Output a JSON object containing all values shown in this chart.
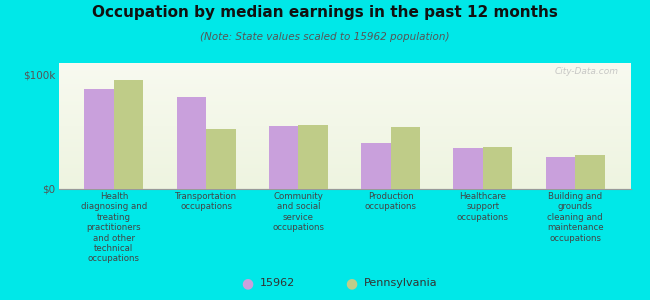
{
  "title": "Occupation by median earnings in the past 12 months",
  "subtitle": "(Note: State values scaled to 15962 population)",
  "background_color": "#00e8e8",
  "plot_bg_colors": [
    "#eef4e0",
    "#f8faf0"
  ],
  "categories": [
    "Health\ndiagnosing and\ntreating\npractitioners\nand other\ntechnical\noccupations",
    "Transportation\noccupations",
    "Community\nand social\nservice\noccupations",
    "Production\noccupations",
    "Healthcare\nsupport\noccupations",
    "Building and\ngrounds\ncleaning and\nmaintenance\noccupations"
  ],
  "values_15962": [
    87000,
    80000,
    55000,
    40000,
    36000,
    28000
  ],
  "values_pa": [
    95000,
    52000,
    56000,
    54000,
    37000,
    30000
  ],
  "color_15962": "#c9a0dc",
  "color_pa": "#bfcc88",
  "ylim": [
    0,
    110000
  ],
  "yticks": [
    0,
    100000
  ],
  "ytick_labels": [
    "$0",
    "$100k"
  ],
  "legend_15962": "15962",
  "legend_pa": "Pennsylvania",
  "watermark": "City-Data.com"
}
